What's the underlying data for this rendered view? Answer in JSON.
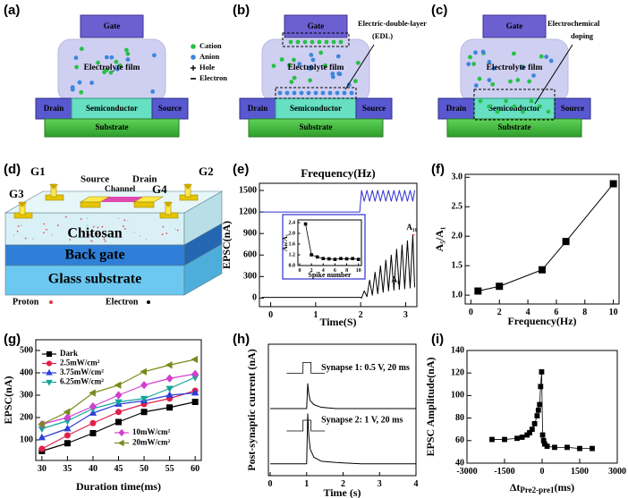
{
  "panel_labels": [
    "(a)",
    "(b)",
    "(c)",
    "(d)",
    "(e)",
    "(f)",
    "(g)",
    "(h)",
    "(i)"
  ],
  "device_panels": [
    {
      "gate": "Gate",
      "film": "Electrolyte film",
      "drain": "Drain",
      "channel": "Semiconductor",
      "source": "Source",
      "substrate": "Substrate",
      "legend": [
        "Cation",
        "Anion",
        "Hole",
        "Electron"
      ]
    },
    {
      "gate": "Gate",
      "film": "Electrolyte film",
      "drain": "Drain",
      "channel": "Semiconductor",
      "source": "Source",
      "substrate": "Substrate",
      "note": [
        "Electric-double-layer",
        "(EDL)"
      ]
    },
    {
      "gate": "Gate",
      "film": "Electrolyte film",
      "drain": "Drain",
      "channel": "Semiconductor",
      "source": "Source",
      "substrate": "Substrate",
      "note": [
        "Electrochemical",
        "doping"
      ]
    }
  ],
  "device_3d": {
    "gates": [
      "G1",
      "G2",
      "G3",
      "G4"
    ],
    "source": "Source",
    "drain": "Drain",
    "channel": "Channel",
    "layers": [
      "Chitosan",
      "Back gate",
      "Glass substrate"
    ],
    "legend": [
      "Proton",
      "Electron"
    ]
  },
  "chart_data": [
    {
      "type": "line",
      "title": "Frequency(Hz)",
      "x_label": "Time(S)",
      "y_label": "EPSC(nA)",
      "xlim": [
        -0.25,
        3.25
      ],
      "ylim": [
        -120,
        1600
      ],
      "xticks": [
        0,
        1,
        2,
        3
      ],
      "yticks": [
        0,
        300,
        600,
        900,
        1200,
        1500
      ],
      "series": [
        {
          "color": "#000000",
          "x": [
            -0.2,
            0.2,
            0.6,
            1.0,
            1.4,
            1.8,
            2.0,
            2.02,
            2.08,
            2.14,
            2.2,
            2.26,
            2.32,
            2.38,
            2.44,
            2.5,
            2.56,
            2.62,
            2.68,
            2.74,
            2.8,
            2.86,
            2.92,
            2.98,
            3.04,
            3.1,
            3.16,
            3.2
          ],
          "values": [
            10,
            10,
            10,
            10,
            10,
            10,
            10,
            0,
            100,
            20,
            250,
            40,
            360,
            60,
            450,
            80,
            530,
            100,
            600,
            110,
            680,
            120,
            740,
            130,
            800,
            140,
            880,
            150
          ]
        },
        {
          "color": "#2e2ed0",
          "x": [
            -0.2,
            1.98,
            2.02,
            2.08,
            2.14,
            2.2,
            2.26,
            2.32,
            2.38,
            2.44,
            2.5,
            2.56,
            2.62,
            2.68,
            2.74,
            2.8,
            2.86,
            2.92,
            2.98,
            3.04,
            3.1,
            3.16,
            3.2
          ],
          "values": [
            1200,
            1200,
            1500,
            1350,
            1500,
            1350,
            1500,
            1350,
            1500,
            1350,
            1500,
            1350,
            1500,
            1350,
            1500,
            1350,
            1500,
            1350,
            1500,
            1350,
            1500,
            1350,
            1500
          ]
        }
      ],
      "annotations": [
        "A₁",
        "A₁₀"
      ]
    },
    {
      "type": "line",
      "x_label": "Spike number",
      "y_label": "Aₙ/A₁",
      "x": [
        1,
        2,
        3,
        4,
        5,
        6,
        7,
        8,
        9,
        10
      ],
      "xlim": [
        -0.3,
        10.5
      ],
      "ylim": [
        0.8,
        2.5
      ],
      "xticks": [
        0,
        2,
        4,
        6,
        8,
        10
      ],
      "yticks": [
        0.8,
        1.2,
        1.6,
        {
          "value": 2,
          "label": "2.0"
        },
        2.4
      ],
      "series": [
        {
          "color": "#000000",
          "marker": "square",
          "values": [
            2.35,
            1.2,
            1.12,
            1.06,
            1.05,
            1.03,
            1.06,
            1.05,
            1.06,
            1.03
          ]
        }
      ]
    },
    {
      "type": "line",
      "x_label": "Frequency(Hz)",
      "y_label": "A₅/A₁",
      "x": [
        0.5,
        2,
        5,
        6.67,
        10
      ],
      "xlim": [
        -0.4,
        10.4
      ],
      "ylim": [
        0.85,
        3.05
      ],
      "xticks": [
        0,
        2,
        4,
        6,
        8,
        10
      ],
      "yticks": [
        {
          "value": 1,
          "label": "1.0"
        },
        1.5,
        {
          "value": 2,
          "label": "2.0"
        },
        2.5,
        {
          "value": 3,
          "label": "3.0"
        }
      ],
      "series": [
        {
          "color": "#000000",
          "marker": "square",
          "values": [
            1.07,
            1.15,
            1.43,
            1.91,
            2.89
          ]
        }
      ]
    },
    {
      "type": "line",
      "x_label": "Duration time(ms)",
      "y_label": "EPSC(nA)",
      "x": [
        30,
        35,
        40,
        45,
        50,
        55,
        60
      ],
      "xlim": [
        28.8,
        61.2
      ],
      "ylim": [
        8,
        548
      ],
      "xticks": [
        30,
        35,
        40,
        45,
        50,
        55,
        60
      ],
      "yticks": [
        100,
        200,
        300,
        400,
        500
      ],
      "series": [
        {
          "name": "Dark",
          "color": "#000000",
          "marker": "square",
          "values": [
            50,
            85,
            130,
            180,
            225,
            245,
            270
          ]
        },
        {
          "name": "2.5mW/cm²",
          "color": "#e0204a",
          "marker": "circle",
          "values": [
            60,
            120,
            175,
            225,
            260,
            285,
            320
          ]
        },
        {
          "name": "3.75mW/cm²",
          "color": "#2a3fd8",
          "marker": "triangle",
          "values": [
            110,
            150,
            220,
            260,
            275,
            300,
            310
          ]
        },
        {
          "name": "6.25mW/cm²",
          "color": "#12a59a",
          "marker": "triangle-down",
          "values": [
            150,
            185,
            240,
            270,
            285,
            330,
            380
          ]
        },
        {
          "name": "10mW/cm²",
          "color": "#d43fd0",
          "marker": "diamond",
          "values": [
            170,
            200,
            250,
            300,
            345,
            375,
            395
          ]
        },
        {
          "name": "20mW/cm²",
          "color": "#7a8a1a",
          "marker": "triangle-left",
          "values": [
            170,
            225,
            310,
            345,
            405,
            435,
            460
          ]
        }
      ]
    },
    {
      "type": "line",
      "x_label": "Time (s)",
      "y_label": "Post-synaptic current (nA)",
      "x": [
        0,
        0.9,
        0.98,
        1.0,
        1.03,
        1.06,
        1.1,
        1.2,
        1.4,
        1.8,
        2.5,
        4
      ],
      "xlim": [
        -0.05,
        4
      ],
      "ylim": [
        0,
        100
      ],
      "xticks": [
        0,
        1,
        2,
        3,
        4
      ],
      "series": [
        {
          "name": "Synapse 1:  0.5 V, 20 ms",
          "color": "#000000",
          "values": [
            51,
            51,
            51,
            51,
            70,
            62,
            57,
            54,
            52,
            51,
            51,
            51
          ]
        },
        {
          "name": "Synapse 2:  1 V, 20 ms",
          "color": "#000000",
          "values": [
            9,
            9,
            9,
            9,
            47,
            30,
            20,
            14,
            11,
            10,
            9,
            9
          ]
        }
      ]
    },
    {
      "type": "line",
      "x_label": {
        "main": "Δt",
        "sub": "Pre2-pre1",
        "unit": "(ms)"
      },
      "y_label": "EPSC Amplitude(nA)",
      "x": [
        -2000,
        -1500,
        -1000,
        -800,
        -600,
        -500,
        -400,
        -300,
        -200,
        -150,
        -100,
        -60,
        -20,
        20,
        60,
        100,
        200,
        500,
        1000,
        1500,
        2000
      ],
      "xlim": [
        -3000,
        3000
      ],
      "ylim": [
        40,
        140
      ],
      "xticks": [
        -3000,
        -1500,
        0,
        1500,
        3000
      ],
      "yticks": [
        40,
        60,
        80,
        100,
        120,
        140
      ],
      "series": [
        {
          "color": "#000000",
          "marker": "square",
          "values": [
            61,
            61,
            62,
            63,
            65,
            67,
            70,
            75,
            82,
            87,
            92,
            108,
            121,
            65,
            60,
            57,
            55,
            54,
            54,
            53,
            53
          ]
        }
      ]
    }
  ]
}
